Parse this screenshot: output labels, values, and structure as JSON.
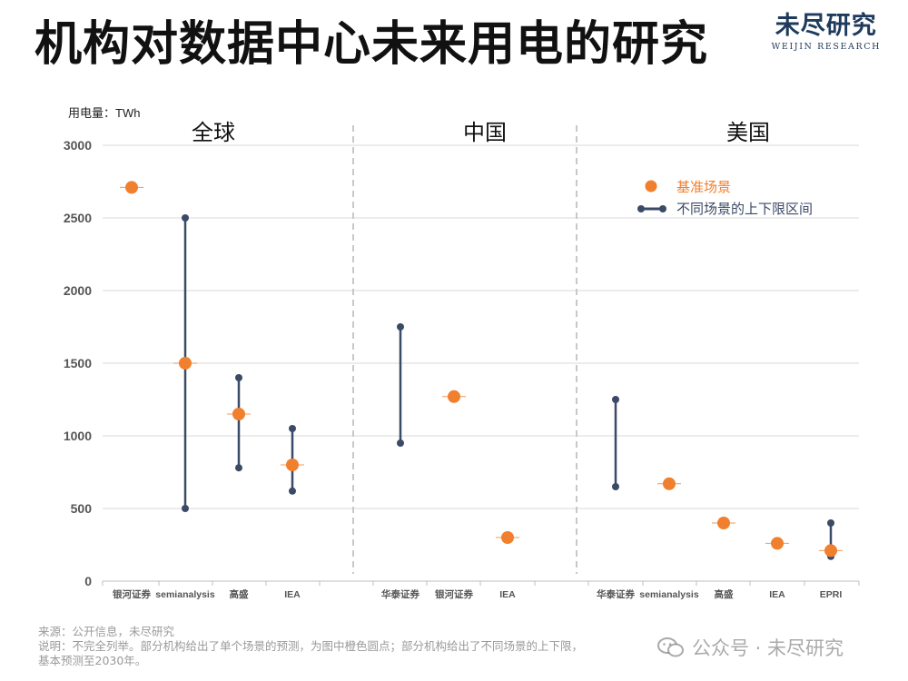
{
  "page": {
    "title": "机构对数据中心未来用电的研究",
    "brand_cn": "未尽研究",
    "brand_en": "WEIJIN RESEARCH",
    "source_note": "来源：公开信息，未尽研究",
    "explain_note_1": "说明：不完全列举。部分机构给出了单个场景的预测，为图中橙色圆点；部分机构给出了不同场景的上下限，",
    "explain_note_2": "基本预测至2030年。",
    "watermark": "公众号 · 未尽研究",
    "watermark_icon": "wechat-icon"
  },
  "colors": {
    "base": "#f07f2e",
    "range": "#3b4a66",
    "grid": "#d9d9d9",
    "divider": "#c8c8c8"
  },
  "chart_data": {
    "type": "scatter",
    "ylabel": "用电量：TWh",
    "ylim": [
      0,
      3000
    ],
    "yticks": [
      0,
      500,
      1000,
      1500,
      2000,
      2500,
      3000
    ],
    "grid": true,
    "legend_position": "top-right",
    "legend": {
      "base": "基准场景",
      "range": "不同场景的上下限区间"
    },
    "panels": [
      {
        "title": "全球",
        "institutions": [
          {
            "name": "银河证券",
            "base": 2710,
            "low": null,
            "high": null
          },
          {
            "name": "semianalysis",
            "base": 1500,
            "low": 500,
            "high": 2500
          },
          {
            "name": "高盛",
            "base": 1150,
            "low": 780,
            "high": 1400
          },
          {
            "name": "IEA",
            "base": 800,
            "low": 620,
            "high": 1050
          }
        ]
      },
      {
        "title": "中国",
        "institutions": [
          {
            "name": "华泰证券",
            "base": null,
            "low": 950,
            "high": 1750
          },
          {
            "name": "银河证券",
            "base": 1270,
            "low": null,
            "high": null
          },
          {
            "name": "IEA",
            "base": 300,
            "low": null,
            "high": null
          }
        ]
      },
      {
        "title": "美国",
        "institutions": [
          {
            "name": "华泰证券",
            "base": null,
            "low": 650,
            "high": 1250
          },
          {
            "name": "semianalysis",
            "base": 670,
            "low": null,
            "high": null
          },
          {
            "name": "高盛",
            "base": 400,
            "low": null,
            "high": null
          },
          {
            "name": "IEA",
            "base": 260,
            "low": null,
            "high": null
          },
          {
            "name": "EPRI",
            "base": 210,
            "low": 170,
            "high": 400
          }
        ]
      }
    ]
  }
}
